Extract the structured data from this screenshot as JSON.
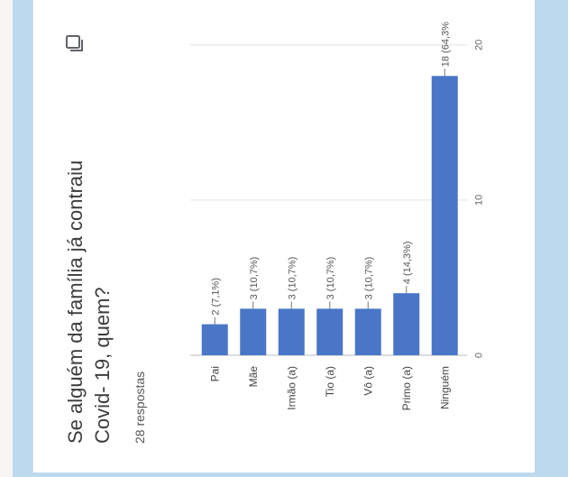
{
  "card": {
    "title": "Se alguém da família já contraiu\nCovid- 19, quem?",
    "responses": "28 respostas",
    "copy_icon": "copy-icon"
  },
  "chart_data": {
    "type": "bar",
    "orientation": "horizontal",
    "categories": [
      "Pai",
      "Mãe",
      "Irmão (a)",
      "Tio (a)",
      "Vô (a)",
      "Primo (a)",
      "Ninguém"
    ],
    "values": [
      2,
      3,
      3,
      3,
      3,
      4,
      18
    ],
    "data_labels": [
      "2 (7,1%)",
      "3 (10,7%)",
      "3 (10,7%)",
      "3 (10,7%)",
      "3 (10,7%)",
      "4 (14,3%)",
      "18 (64,3%"
    ],
    "xticks": [
      0,
      10,
      20
    ],
    "xlim": [
      0,
      21.5
    ],
    "bar_color": "#4a76c8"
  }
}
